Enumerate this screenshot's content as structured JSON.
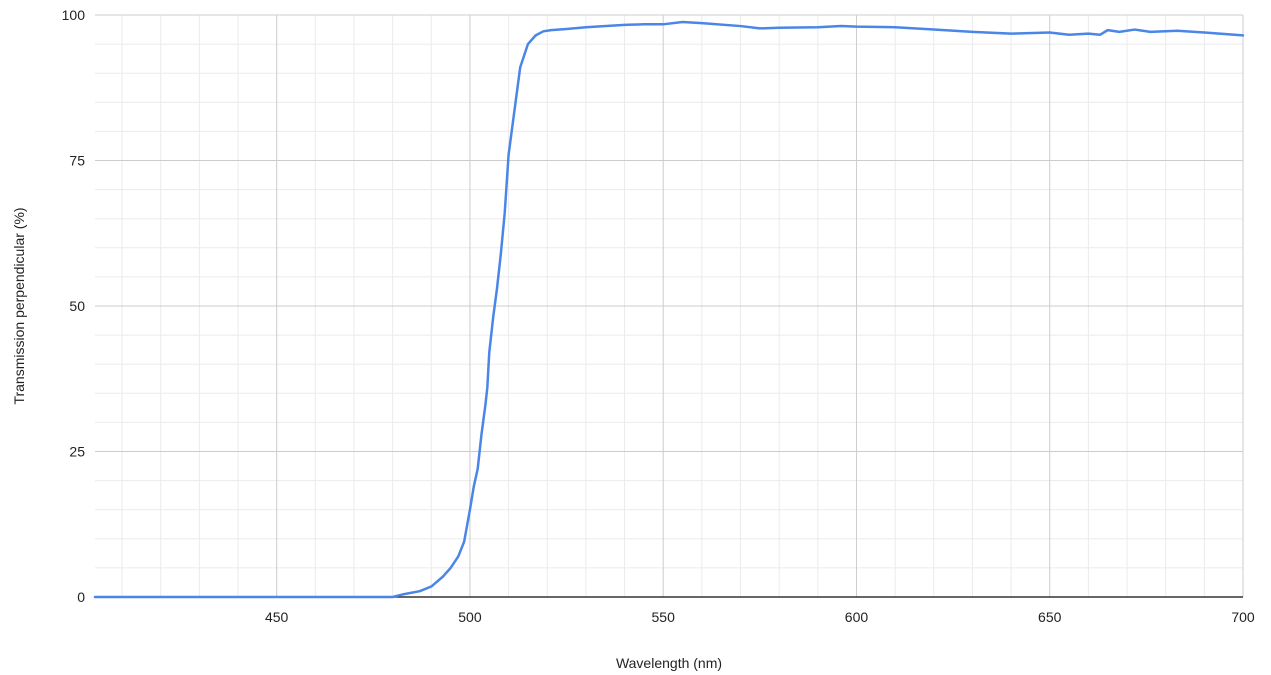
{
  "chart_data": {
    "type": "line",
    "title": "",
    "xlabel": "Wavelength (nm)",
    "ylabel": "Transmission perpendicular (%)",
    "xlim": [
      403,
      700
    ],
    "ylim": [
      0,
      100
    ],
    "x_ticks": [
      450,
      500,
      550,
      600,
      650,
      700
    ],
    "y_ticks": [
      0,
      25,
      50,
      75,
      100
    ],
    "x_minor_step": 10,
    "y_minor_step": 5,
    "grid": true,
    "legend": "none",
    "colors": {
      "line": "#4a86e8",
      "major_grid": "#cccccc",
      "minor_grid": "#ebebeb",
      "axis": "#333333"
    },
    "series": [
      {
        "x": [
          403,
          420,
          440,
          460,
          480,
          483,
          487,
          490,
          493,
          495,
          497,
          498.5,
          500,
          501,
          502,
          503,
          504,
          504.5,
          505,
          506,
          507,
          508,
          509,
          510,
          511,
          512,
          513,
          515,
          517,
          519,
          521,
          525,
          530,
          540,
          545,
          550,
          555,
          560,
          570,
          575,
          580,
          590,
          596,
          600,
          610,
          620,
          630,
          640,
          650,
          655,
          660,
          663,
          665,
          668,
          672,
          676,
          683,
          690,
          700
        ],
        "y": [
          0,
          0,
          0,
          0,
          0,
          0.5,
          1,
          1.8,
          3.5,
          5,
          7,
          9.5,
          15,
          19,
          22,
          28,
          33,
          36,
          42,
          48,
          53,
          59,
          66,
          76,
          81,
          86,
          91,
          95,
          96.5,
          97.2,
          97.4,
          97.6,
          97.9,
          98.3,
          98.4,
          98.4,
          98.8,
          98.6,
          98.1,
          97.7,
          97.8,
          97.9,
          98.1,
          98.0,
          97.9,
          97.5,
          97.1,
          96.8,
          97.0,
          96.6,
          96.8,
          96.6,
          97.4,
          97.1,
          97.5,
          97.1,
          97.3,
          97.0,
          96.5
        ]
      }
    ]
  }
}
